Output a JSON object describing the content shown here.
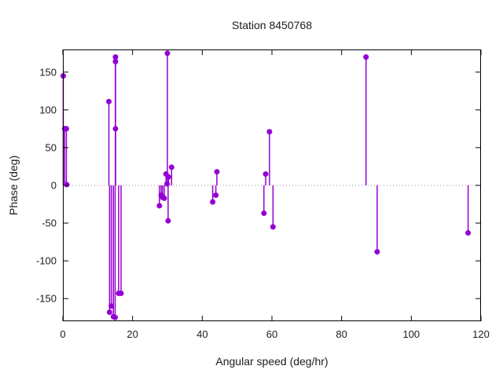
{
  "figure": {
    "kind": "gnuplot-style stem plot"
  },
  "chart_data": {
    "type": "scatter",
    "subtype": "impulses-with-points",
    "title": "Station 8450768",
    "xlabel": "Angular speed (deg/hr)",
    "ylabel": "Phase (deg)",
    "xlim": [
      0,
      120
    ],
    "ylim": [
      -180,
      180
    ],
    "xticks": [
      0,
      20,
      40,
      60,
      80,
      100,
      120
    ],
    "yticks": [
      150,
      100,
      50,
      0,
      -50,
      -100,
      -150
    ],
    "grid": false,
    "legend": "none",
    "zero_line": true,
    "series_color": "#9400d3",
    "zero_line_color": "#999999",
    "border_color": "#000000",
    "points": [
      [
        0.1,
        145
      ],
      [
        0.5,
        75
      ],
      [
        1.0,
        75
      ],
      [
        1.1,
        1
      ],
      [
        13.2,
        111
      ],
      [
        13.4,
        -168
      ],
      [
        13.9,
        -160
      ],
      [
        14.5,
        -174
      ],
      [
        15.0,
        -175
      ],
      [
        15.1,
        170
      ],
      [
        15.1,
        164
      ],
      [
        15.1,
        75
      ],
      [
        16.0,
        -143
      ],
      [
        16.7,
        -143
      ],
      [
        27.7,
        -27
      ],
      [
        28.2,
        -13
      ],
      [
        28.6,
        -16
      ],
      [
        29.1,
        -17
      ],
      [
        29.6,
        15
      ],
      [
        29.9,
        2
      ],
      [
        30.0,
        175
      ],
      [
        30.2,
        -47
      ],
      [
        30.3,
        11
      ],
      [
        31.2,
        24
      ],
      [
        43.0,
        -22
      ],
      [
        43.9,
        -13
      ],
      [
        44.2,
        18
      ],
      [
        57.7,
        -37
      ],
      [
        58.2,
        15
      ],
      [
        59.3,
        71
      ],
      [
        60.3,
        -55
      ],
      [
        87.0,
        170
      ],
      [
        90.2,
        -88
      ],
      [
        116.3,
        -63
      ]
    ]
  }
}
